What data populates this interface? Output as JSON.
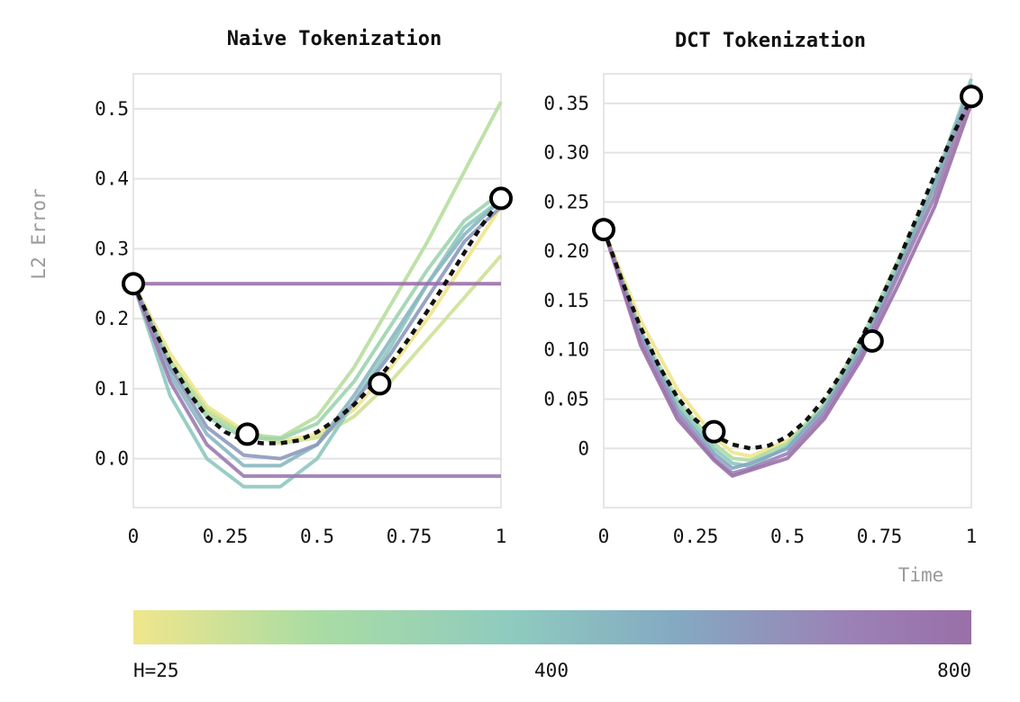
{
  "colors": {
    "viridis_soft": [
      "#f0e68c",
      "#a9dca3",
      "#8fcbbf",
      "#84a9c2",
      "#9b82b6",
      "#9a6fa8"
    ],
    "target_line": "#111111",
    "marker_fill": "#ffffff",
    "marker_stroke": "#000000"
  },
  "shared": {
    "ylabel": "L2 Error",
    "xlabel": "Time",
    "xticks": [
      "0",
      "0.25",
      "0.5",
      "0.75",
      "1"
    ],
    "xlim": [
      0,
      1
    ]
  },
  "colorbar": {
    "label_min": "H=25",
    "label_mid": "400",
    "label_max": "800",
    "range": [
      25,
      800
    ]
  },
  "chart_data": [
    {
      "type": "line",
      "title": "Naive Tokenization",
      "ylim": [
        -0.07,
        0.55
      ],
      "yticks": [
        {
          "value": 0.0,
          "label": "0.0"
        },
        {
          "value": 0.1,
          "label": "0.1"
        },
        {
          "value": 0.2,
          "label": "0.2"
        },
        {
          "value": 0.3,
          "label": "0.3"
        },
        {
          "value": 0.4,
          "label": "0.4"
        },
        {
          "value": 0.5,
          "label": "0.5"
        }
      ],
      "target": {
        "x": [
          0,
          0.05,
          0.1,
          0.15,
          0.2,
          0.25,
          0.3,
          0.35,
          0.4,
          0.45,
          0.5,
          0.55,
          0.6,
          0.65,
          0.7,
          0.75,
          0.8,
          0.85,
          0.9,
          0.95,
          1.0
        ],
        "y": [
          0.25,
          0.192,
          0.139,
          0.095,
          0.06,
          0.038,
          0.026,
          0.022,
          0.022,
          0.026,
          0.038,
          0.055,
          0.077,
          0.104,
          0.136,
          0.172,
          0.211,
          0.252,
          0.294,
          0.335,
          0.37
        ]
      },
      "markers": {
        "x": [
          0,
          0.31,
          0.67,
          1.0
        ],
        "y": [
          0.25,
          0.035,
          0.107,
          0.372
        ]
      },
      "series": [
        {
          "h": 25,
          "x": [
            0,
            0.1,
            0.2,
            0.3,
            0.4,
            0.5,
            0.6,
            0.7,
            0.8,
            0.9,
            1.0
          ],
          "y": [
            0.25,
            0.15,
            0.075,
            0.04,
            0.025,
            0.035,
            0.07,
            0.13,
            0.2,
            0.28,
            0.36
          ]
        },
        {
          "h": 100,
          "x": [
            0,
            0.1,
            0.2,
            0.3,
            0.4,
            0.5,
            0.6,
            0.7,
            0.8,
            0.9,
            1.0
          ],
          "y": [
            0.25,
            0.14,
            0.07,
            0.036,
            0.022,
            0.03,
            0.06,
            0.11,
            0.17,
            0.23,
            0.29
          ]
        },
        {
          "h": 150,
          "x": [
            0,
            0.1,
            0.2,
            0.3,
            0.4,
            0.5,
            0.6,
            0.7,
            0.8,
            0.9,
            1.0
          ],
          "y": [
            0.25,
            0.14,
            0.065,
            0.035,
            0.03,
            0.06,
            0.13,
            0.22,
            0.31,
            0.41,
            0.51
          ]
        },
        {
          "h": 250,
          "x": [
            0,
            0.1,
            0.2,
            0.3,
            0.4,
            0.5,
            0.6,
            0.7,
            0.8,
            0.9,
            1.0
          ],
          "y": [
            0.25,
            0.13,
            0.06,
            0.03,
            0.028,
            0.05,
            0.11,
            0.19,
            0.27,
            0.34,
            0.38
          ]
        },
        {
          "h": 350,
          "x": [
            0,
            0.1,
            0.2,
            0.3,
            0.4,
            0.5,
            0.6,
            0.7,
            0.8,
            0.9,
            1.0
          ],
          "y": [
            0.25,
            0.09,
            0.0,
            -0.04,
            -0.04,
            0.0,
            0.08,
            0.16,
            0.25,
            0.33,
            0.37
          ]
        },
        {
          "h": 425,
          "x": [
            0,
            0.1,
            0.2,
            0.3,
            0.4,
            0.5,
            0.6,
            0.7,
            0.8,
            0.9,
            1.0
          ],
          "y": [
            0.25,
            0.12,
            0.035,
            -0.01,
            -0.01,
            0.02,
            0.09,
            0.17,
            0.25,
            0.32,
            0.37
          ]
        },
        {
          "h": 550,
          "x": [
            0,
            0.1,
            0.2,
            0.3,
            0.4,
            0.5,
            0.6,
            0.7,
            0.8,
            0.9,
            1.0
          ],
          "y": [
            0.25,
            0.13,
            0.045,
            0.005,
            0.0,
            0.02,
            0.08,
            0.15,
            0.23,
            0.31,
            0.36
          ]
        },
        {
          "h": 700,
          "x": [
            0,
            0.1,
            0.2,
            0.3,
            0.4,
            0.5,
            0.6,
            0.7,
            0.8,
            0.9,
            1.0
          ],
          "y": [
            0.25,
            0.11,
            0.02,
            -0.025,
            -0.025,
            -0.025,
            -0.025,
            -0.025,
            -0.025,
            -0.025,
            -0.025
          ]
        },
        {
          "h": 800,
          "x": [
            0,
            1.0
          ],
          "y": [
            0.25,
            0.25
          ]
        }
      ]
    },
    {
      "type": "line",
      "title": "DCT Tokenization",
      "ylim": [
        -0.06,
        0.38
      ],
      "yticks": [
        {
          "value": 0.0,
          "label": "0"
        },
        {
          "value": 0.05,
          "label": "0.05"
        },
        {
          "value": 0.1,
          "label": "0.10"
        },
        {
          "value": 0.15,
          "label": "0.15"
        },
        {
          "value": 0.2,
          "label": "0.20"
        },
        {
          "value": 0.25,
          "label": "0.25"
        },
        {
          "value": 0.3,
          "label": "0.30"
        },
        {
          "value": 0.35,
          "label": "0.35"
        }
      ],
      "target": {
        "x": [
          0,
          0.05,
          0.1,
          0.15,
          0.2,
          0.25,
          0.3,
          0.35,
          0.4,
          0.45,
          0.5,
          0.55,
          0.6,
          0.65,
          0.7,
          0.75,
          0.8,
          0.85,
          0.9,
          0.95,
          1.0
        ],
        "y": [
          0.222,
          0.17,
          0.123,
          0.084,
          0.052,
          0.029,
          0.013,
          0.004,
          0.0,
          0.003,
          0.012,
          0.028,
          0.05,
          0.078,
          0.111,
          0.148,
          0.189,
          0.233,
          0.277,
          0.318,
          0.355
        ]
      },
      "markers": {
        "x": [
          0,
          0.3,
          0.73,
          1.0
        ],
        "y": [
          0.222,
          0.017,
          0.109,
          0.357
        ]
      },
      "series": [
        {
          "h": 25,
          "x": [
            0,
            0.1,
            0.2,
            0.3,
            0.35,
            0.4,
            0.5,
            0.6,
            0.7,
            0.8,
            0.9,
            1.0
          ],
          "y": [
            0.222,
            0.13,
            0.06,
            0.012,
            -0.004,
            -0.008,
            0.008,
            0.04,
            0.1,
            0.18,
            0.26,
            0.36
          ]
        },
        {
          "h": 175,
          "x": [
            0,
            0.1,
            0.2,
            0.3,
            0.35,
            0.4,
            0.5,
            0.6,
            0.7,
            0.8,
            0.9,
            1.0
          ],
          "y": [
            0.222,
            0.12,
            0.05,
            0.005,
            -0.01,
            -0.012,
            0.005,
            0.045,
            0.11,
            0.19,
            0.27,
            0.37
          ]
        },
        {
          "h": 350,
          "x": [
            0,
            0.1,
            0.2,
            0.3,
            0.35,
            0.4,
            0.5,
            0.6,
            0.7,
            0.8,
            0.9,
            1.0
          ],
          "y": [
            0.222,
            0.115,
            0.045,
            0.0,
            -0.015,
            -0.018,
            0.002,
            0.042,
            0.105,
            0.185,
            0.27,
            0.375
          ]
        },
        {
          "h": 500,
          "x": [
            0,
            0.1,
            0.2,
            0.3,
            0.35,
            0.4,
            0.5,
            0.6,
            0.7,
            0.8,
            0.9,
            1.0
          ],
          "y": [
            0.222,
            0.118,
            0.04,
            -0.005,
            -0.02,
            -0.015,
            0.0,
            0.04,
            0.1,
            0.18,
            0.265,
            0.37
          ]
        },
        {
          "h": 650,
          "x": [
            0,
            0.1,
            0.2,
            0.3,
            0.35,
            0.4,
            0.5,
            0.6,
            0.7,
            0.8,
            0.9,
            1.0
          ],
          "y": [
            0.222,
            0.11,
            0.035,
            -0.01,
            -0.025,
            -0.02,
            -0.005,
            0.035,
            0.095,
            0.175,
            0.255,
            0.36
          ]
        },
        {
          "h": 800,
          "x": [
            0,
            0.1,
            0.2,
            0.3,
            0.35,
            0.4,
            0.5,
            0.6,
            0.7,
            0.8,
            0.9,
            1.0
          ],
          "y": [
            0.222,
            0.105,
            0.03,
            -0.012,
            -0.028,
            -0.022,
            -0.01,
            0.03,
            0.09,
            0.165,
            0.245,
            0.35
          ]
        }
      ]
    }
  ]
}
